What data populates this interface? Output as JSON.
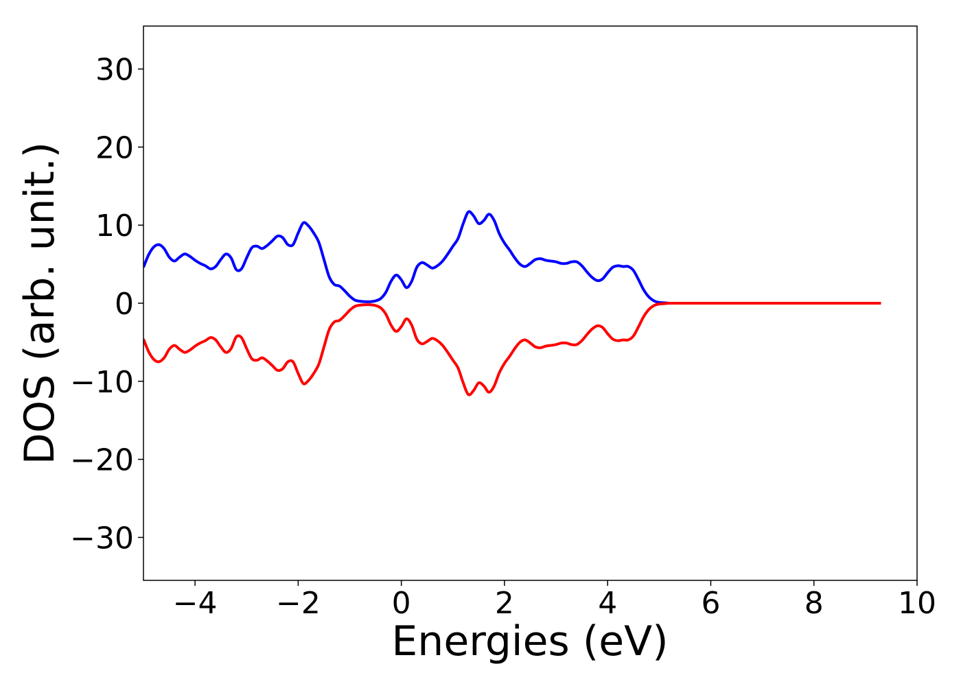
{
  "chart_data": {
    "type": "line",
    "title": "",
    "xlabel": "Energies (eV)",
    "ylabel": "DOS (arb. unit.)",
    "xlim": [
      -5,
      10
    ],
    "ylim": [
      -35.5,
      35.5
    ],
    "xticks": [
      -4,
      -2,
      0,
      2,
      4,
      6,
      8,
      10
    ],
    "yticks": [
      -30,
      -20,
      -10,
      0,
      10,
      20,
      30
    ],
    "xtick_labels": [
      "−4",
      "−2",
      "0",
      "2",
      "4",
      "6",
      "8",
      "10"
    ],
    "ytick_labels": [
      "−30",
      "−20",
      "−10",
      "0",
      "10",
      "20",
      "30"
    ],
    "grid": false,
    "legend": "none",
    "x": [
      -5.0,
      -4.9,
      -4.8,
      -4.7,
      -4.6,
      -4.5,
      -4.4,
      -4.3,
      -4.2,
      -4.1,
      -4.0,
      -3.9,
      -3.8,
      -3.7,
      -3.6,
      -3.5,
      -3.4,
      -3.3,
      -3.2,
      -3.1,
      -3.0,
      -2.9,
      -2.8,
      -2.7,
      -2.6,
      -2.5,
      -2.4,
      -2.3,
      -2.2,
      -2.1,
      -2.0,
      -1.9,
      -1.8,
      -1.7,
      -1.6,
      -1.5,
      -1.4,
      -1.3,
      -1.2,
      -1.1,
      -1.0,
      -0.9,
      -0.8,
      -0.7,
      -0.6,
      -0.5,
      -0.4,
      -0.3,
      -0.2,
      -0.1,
      0.0,
      0.1,
      0.2,
      0.3,
      0.4,
      0.5,
      0.6,
      0.7,
      0.8,
      0.9,
      1.0,
      1.1,
      1.2,
      1.3,
      1.4,
      1.5,
      1.6,
      1.7,
      1.8,
      1.9,
      2.0,
      2.1,
      2.2,
      2.3,
      2.4,
      2.5,
      2.6,
      2.7,
      2.8,
      2.9,
      3.0,
      3.1,
      3.2,
      3.3,
      3.4,
      3.5,
      3.6,
      3.7,
      3.8,
      3.9,
      4.0,
      4.1,
      4.2,
      4.3,
      4.4,
      4.5,
      4.6,
      4.7,
      4.8,
      4.9,
      5.0,
      5.1,
      5.2,
      5.3,
      5.4,
      5.5,
      5.6,
      5.7,
      5.8,
      5.9,
      6.0,
      6.1,
      6.2,
      6.3,
      6.4,
      6.5,
      6.6,
      6.7,
      6.8,
      6.9,
      7.0,
      7.1,
      7.2,
      7.3,
      7.5,
      8.0,
      8.5,
      9.0,
      9.3
    ],
    "series": [
      {
        "color": "#0000ff",
        "values": [
          4.6,
          6.2,
          7.2,
          7.5,
          7.0,
          5.9,
          5.4,
          5.9,
          6.3,
          6.0,
          5.5,
          5.1,
          4.8,
          4.4,
          4.7,
          5.6,
          6.3,
          5.8,
          4.3,
          4.4,
          5.8,
          7.1,
          7.3,
          7.0,
          7.4,
          8.0,
          8.6,
          8.4,
          7.5,
          7.5,
          9.0,
          10.3,
          9.9,
          9.0,
          7.8,
          5.6,
          3.4,
          2.4,
          2.2,
          1.6,
          0.9,
          0.4,
          0.25,
          0.2,
          0.2,
          0.3,
          0.6,
          1.4,
          2.8,
          3.6,
          3.0,
          2.0,
          2.8,
          4.6,
          5.2,
          4.9,
          4.5,
          4.8,
          5.4,
          6.3,
          7.3,
          8.3,
          10.2,
          11.7,
          11.2,
          10.2,
          10.6,
          11.4,
          10.6,
          8.9,
          7.7,
          6.8,
          5.8,
          5.0,
          4.7,
          5.1,
          5.6,
          5.7,
          5.5,
          5.4,
          5.3,
          5.1,
          5.1,
          5.3,
          5.3,
          4.8,
          4.0,
          3.3,
          2.9,
          3.1,
          3.9,
          4.6,
          4.8,
          4.7,
          4.7,
          4.2,
          3.0,
          1.7,
          0.8,
          0.3,
          0.1,
          0.05,
          0.0,
          0.0,
          0.0,
          0.0,
          0.0,
          0.0,
          0.0,
          0.0,
          0.0,
          0.0,
          0.0,
          0.0,
          0.0,
          0.0,
          0.0,
          0.0,
          0.0,
          0.0,
          0.0,
          0.0,
          0.0,
          0.0,
          0.0,
          0.0,
          0.0,
          0.0,
          0.0
        ]
      },
      {
        "color": "#ff0000",
        "values": [
          -4.6,
          -6.2,
          -7.2,
          -7.5,
          -7.0,
          -5.9,
          -5.4,
          -5.9,
          -6.3,
          -6.0,
          -5.5,
          -5.1,
          -4.8,
          -4.4,
          -4.7,
          -5.6,
          -6.3,
          -5.8,
          -4.3,
          -4.4,
          -5.8,
          -7.1,
          -7.3,
          -7.0,
          -7.4,
          -8.0,
          -8.6,
          -8.4,
          -7.5,
          -7.5,
          -9.0,
          -10.3,
          -9.9,
          -9.0,
          -7.8,
          -5.6,
          -3.4,
          -2.4,
          -2.2,
          -1.6,
          -0.9,
          -0.4,
          -0.25,
          -0.2,
          -0.2,
          -0.3,
          -0.6,
          -1.4,
          -2.8,
          -3.6,
          -3.0,
          -2.0,
          -2.8,
          -4.6,
          -5.2,
          -4.9,
          -4.5,
          -4.8,
          -5.4,
          -6.3,
          -7.3,
          -8.3,
          -10.2,
          -11.7,
          -11.2,
          -10.2,
          -10.6,
          -11.4,
          -10.6,
          -8.9,
          -7.7,
          -6.8,
          -5.8,
          -5.0,
          -4.7,
          -5.1,
          -5.6,
          -5.7,
          -5.5,
          -5.4,
          -5.3,
          -5.1,
          -5.1,
          -5.3,
          -5.3,
          -4.8,
          -4.0,
          -3.3,
          -2.9,
          -3.1,
          -3.9,
          -4.6,
          -4.8,
          -4.7,
          -4.7,
          -4.2,
          -3.0,
          -1.7,
          -0.8,
          -0.3,
          -0.1,
          -0.05,
          0.0,
          0.0,
          0.0,
          0.0,
          0.0,
          0.0,
          0.0,
          0.0,
          0.0,
          0.0,
          0.0,
          0.0,
          0.0,
          0.0,
          0.0,
          0.0,
          0.0,
          0.0,
          0.0,
          0.0,
          0.0,
          0.0,
          0.0,
          0.0,
          0.0,
          0.0,
          0.0
        ]
      }
    ]
  }
}
